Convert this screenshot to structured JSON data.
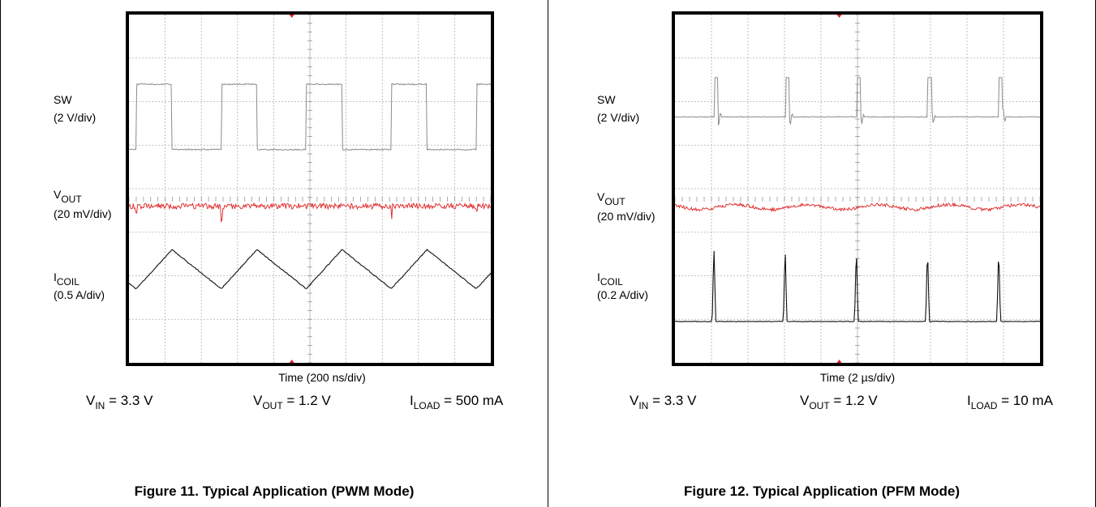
{
  "colors": {
    "grid": "#b0b0b0",
    "sw": "#8c8c8c",
    "vout": "#e02020",
    "icoil": "#111111",
    "frame": "#000000"
  },
  "chart_data": [
    {
      "type": "line",
      "title": "Figure 11. Typical Application (PWM Mode)",
      "xlabel": "Time (200 ns/div)",
      "traces": [
        {
          "name_main": "SW",
          "name_sub": "",
          "scale": "(2 V/div)"
        },
        {
          "name_main": "V",
          "name_sub": "OUT",
          "scale": "(20 mV/div)"
        },
        {
          "name_main": "I",
          "name_sub": "COIL",
          "scale": "(0.5 A/div)"
        }
      ],
      "conditions": [
        {
          "sym": "V",
          "sub": "IN",
          "val": " = 3.3 V"
        },
        {
          "sym": "V",
          "sub": "OUT",
          "val": " = 1.2 V"
        },
        {
          "sym": "I",
          "sub": "LOAD",
          "val": " = 500 mA"
        }
      ],
      "mode": "pwm",
      "divisions": {
        "x": 10,
        "y": 8
      },
      "period_div": 2.35,
      "duty": 0.42
    },
    {
      "type": "line",
      "title": "Figure 12. Typical Application (PFM Mode)",
      "xlabel": "Time (2 µs/div)",
      "traces": [
        {
          "name_main": "SW",
          "name_sub": "",
          "scale": "(2 V/div)"
        },
        {
          "name_main": "V",
          "name_sub": "OUT",
          "scale": "(20 mV/div)"
        },
        {
          "name_main": "I",
          "name_sub": "COIL",
          "scale": "(0.2 A/div)"
        }
      ],
      "conditions": [
        {
          "sym": "V",
          "sub": "IN",
          "val": " = 3.3 V"
        },
        {
          "sym": "V",
          "sub": "OUT",
          "val": " = 1.2 V"
        },
        {
          "sym": "I",
          "sub": "LOAD",
          "val": " = 10 mA"
        }
      ],
      "mode": "pfm",
      "divisions": {
        "x": 10,
        "y": 8
      },
      "period_div": 1.95
    }
  ]
}
